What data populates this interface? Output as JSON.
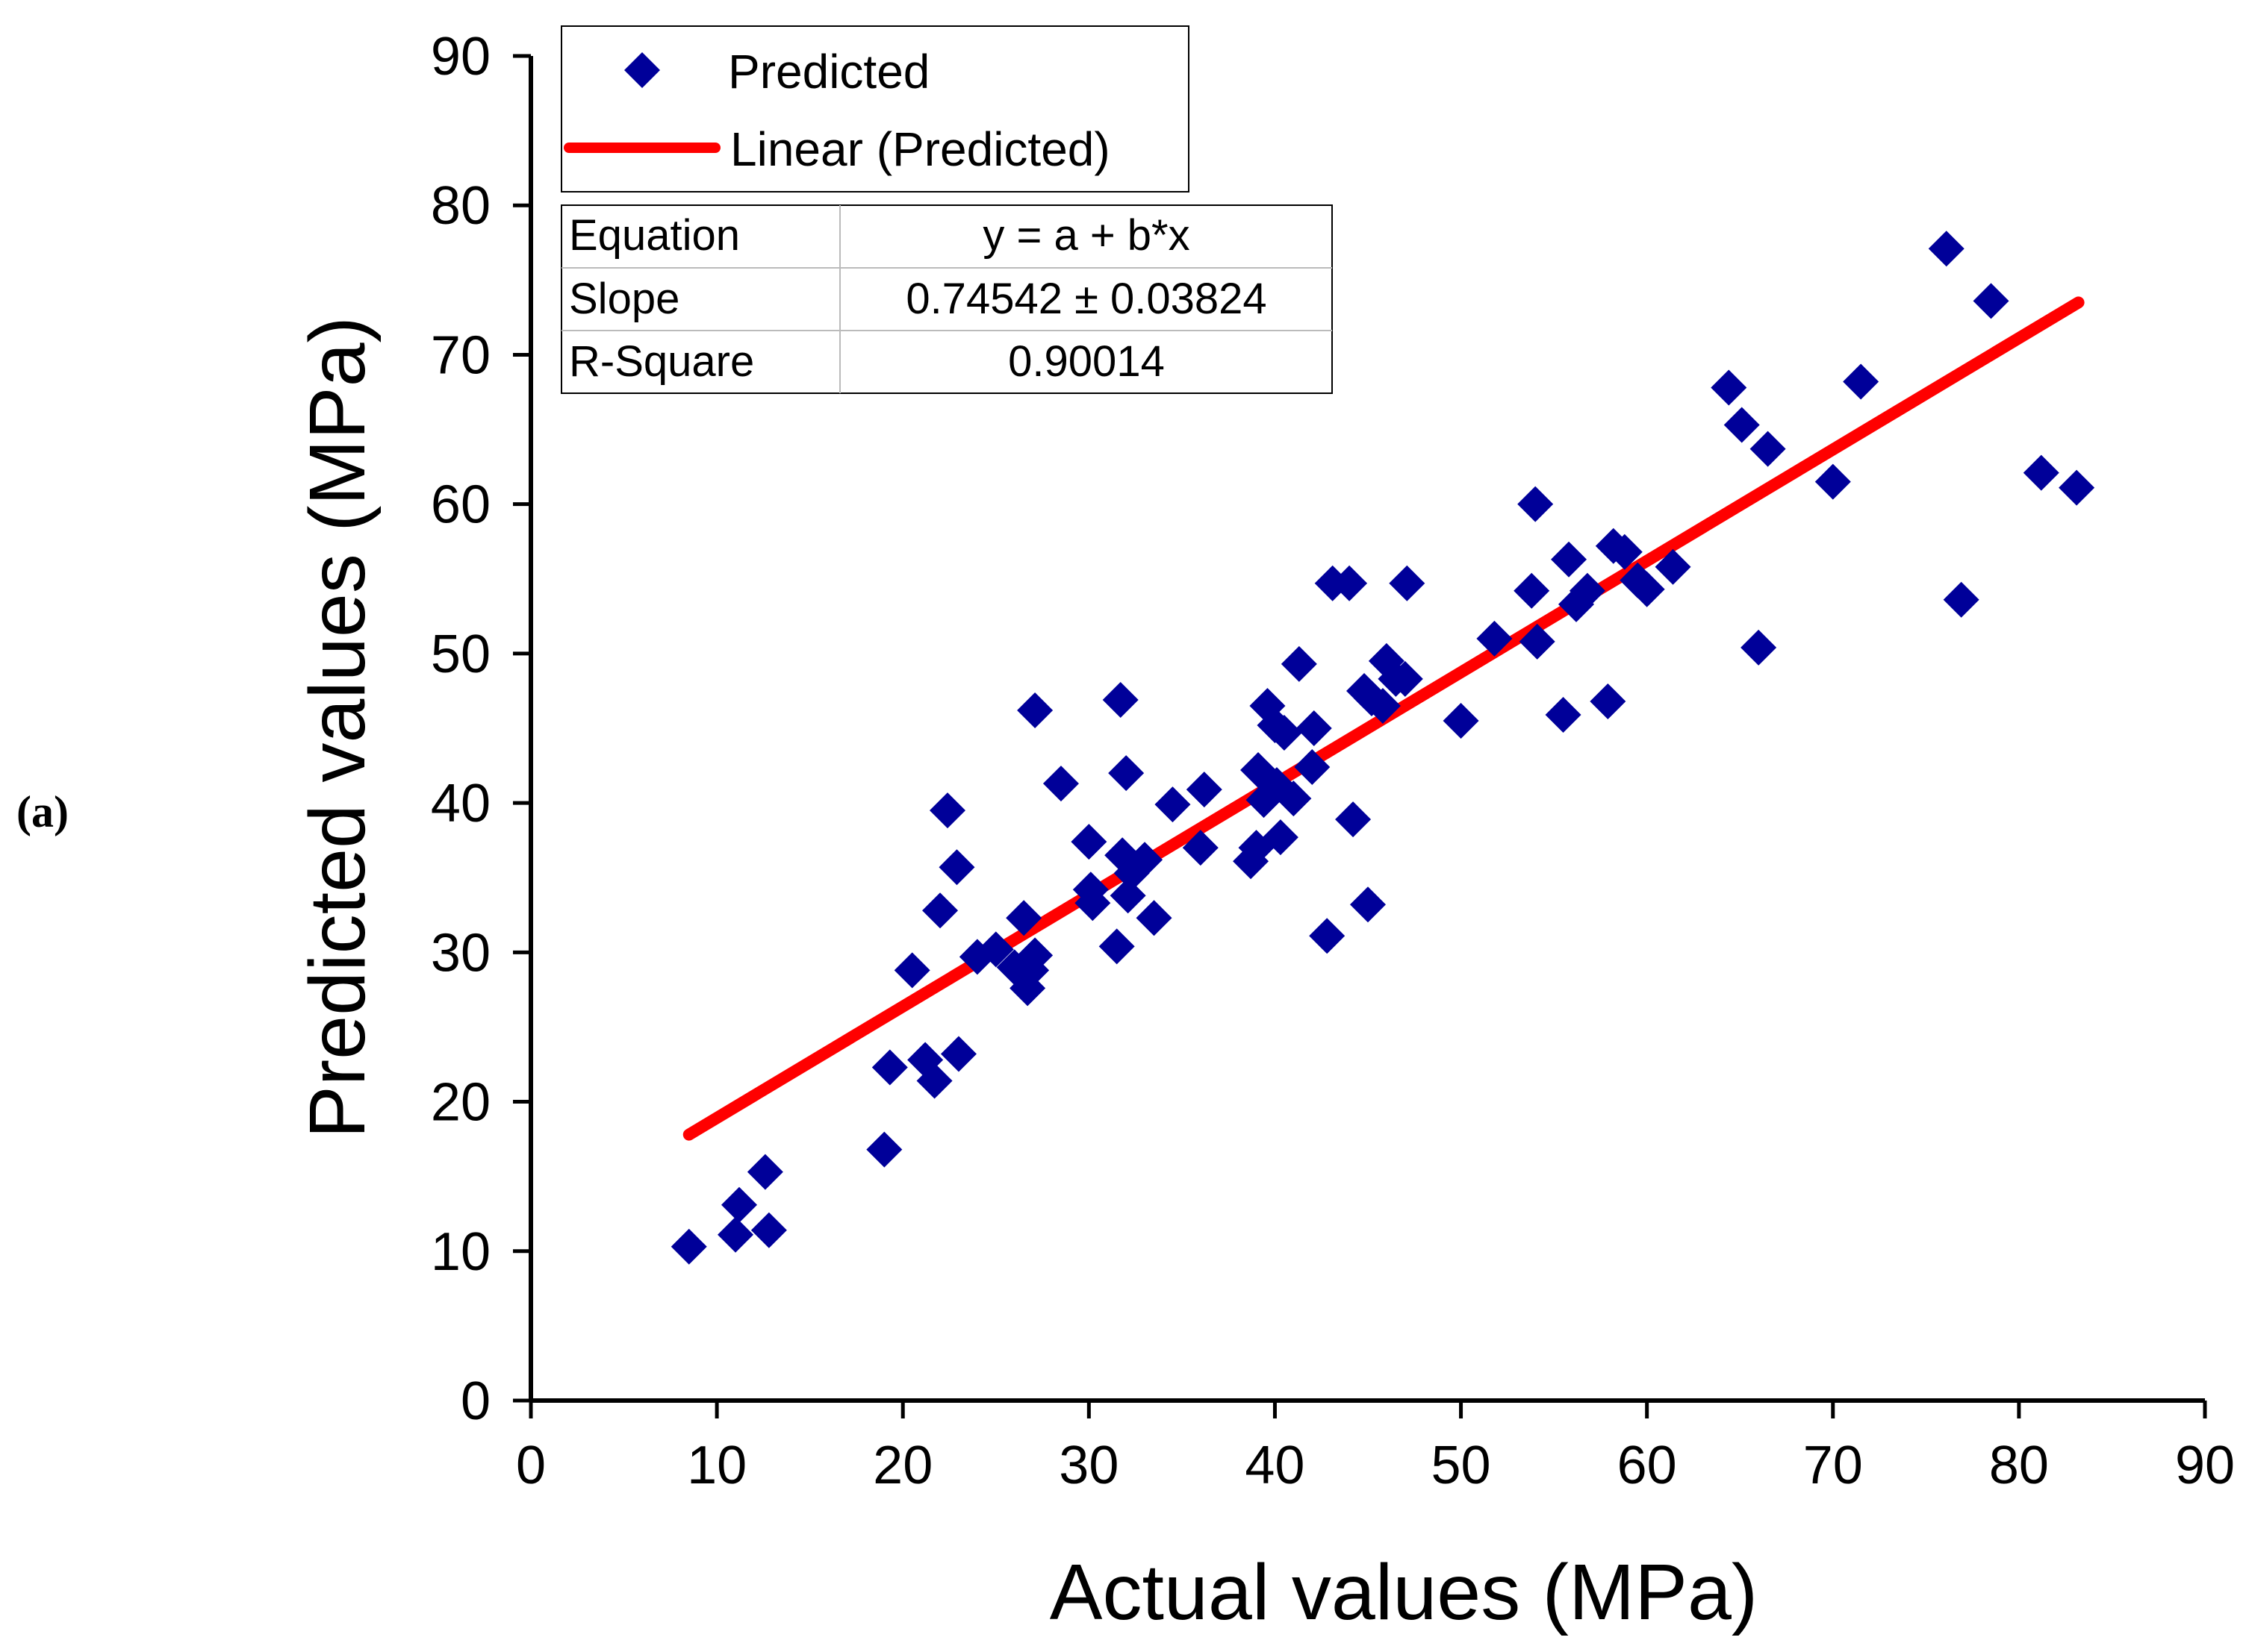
{
  "panel_label": "(a)",
  "chart_data": {
    "type": "scatter",
    "title": "",
    "xlabel": "Actual values (MPa)",
    "ylabel": "Predicted values (MPa)",
    "xlim": [
      0,
      90
    ],
    "ylim": [
      0,
      90
    ],
    "xticks": [
      0,
      10,
      20,
      30,
      40,
      50,
      60,
      70,
      80,
      90
    ],
    "yticks": [
      0,
      10,
      20,
      30,
      40,
      50,
      60,
      70,
      80,
      90
    ],
    "grid": false,
    "legend_position": "top-left",
    "marker_color": "#000099",
    "fit_color": "#ff0000",
    "series": [
      {
        "name": "Predicted",
        "type": "scatter",
        "marker": "diamond",
        "x": [
          8.5,
          11.0,
          12.8,
          11.2,
          12.6,
          19.0,
          19.3,
          20.5,
          21.2,
          21.7,
          22.0,
          22.4,
          22.9,
          23.0,
          24.0,
          25.0,
          26.0,
          26.5,
          26.7,
          26.9,
          27.1,
          27.1,
          28.5,
          30.0,
          30.1,
          30.2,
          31.5,
          31.7,
          31.8,
          32.0,
          32.1,
          32.3,
          33.0,
          33.5,
          34.5,
          36.0,
          36.2,
          38.7,
          39.0,
          39.1,
          39.4,
          39.6,
          40.0,
          40.1,
          40.3,
          40.5,
          41.0,
          41.3,
          42.0,
          42.1,
          42.8,
          43.1,
          44.0,
          44.2,
          44.8,
          45.0,
          45.2,
          45.8,
          46.0,
          46.5,
          47.0,
          47.1,
          50.0,
          51.8,
          53.8,
          54.0,
          54.1,
          55.5,
          55.8,
          56.2,
          56.8,
          57.9,
          58.2,
          58.8,
          59.5,
          60.0,
          61.4,
          64.4,
          65.1,
          66.0,
          66.5,
          70.0,
          71.5,
          76.1,
          76.9,
          78.5,
          81.2,
          83.1
        ],
        "y": [
          10.3,
          11.1,
          11.4,
          13.1,
          15.3,
          16.8,
          22.3,
          28.8,
          22.8,
          21.4,
          32.8,
          39.5,
          35.7,
          23.2,
          29.7,
          30.2,
          29.0,
          32.3,
          27.6,
          28.8,
          29.8,
          46.2,
          41.3,
          37.4,
          34.2,
          33.3,
          30.4,
          46.9,
          36.5,
          42.0,
          33.8,
          35.3,
          36.2,
          32.3,
          39.9,
          37.0,
          40.9,
          36.1,
          37.0,
          42.2,
          40.2,
          46.5,
          45.2,
          41.2,
          37.7,
          44.7,
          40.3,
          49.3,
          42.4,
          45.0,
          31.1,
          54.7,
          54.7,
          38.9,
          47.5,
          33.2,
          47.0,
          46.5,
          49.5,
          48.3,
          48.3,
          54.7,
          45.5,
          51.0,
          54.2,
          60.0,
          50.8,
          45.9,
          56.3,
          53.3,
          54.2,
          46.8,
          57.2,
          56.8,
          54.9,
          54.3,
          55.8,
          67.8,
          65.3,
          50.4,
          63.7,
          61.5,
          68.2,
          77.1,
          53.6,
          73.6,
          62.1,
          61.1
        ]
      },
      {
        "name": "Linear (Predicted)",
        "type": "line",
        "x": [
          8.5,
          83.2
        ],
        "y": [
          17.8,
          73.5
        ]
      }
    ],
    "stats_table": {
      "rows": [
        {
          "label": "Equation",
          "value": "y = a + b*x"
        },
        {
          "label": "Slope",
          "value": "0.74542 ± 0.03824"
        },
        {
          "label": "R-Square",
          "value": "0.90014"
        }
      ]
    }
  }
}
